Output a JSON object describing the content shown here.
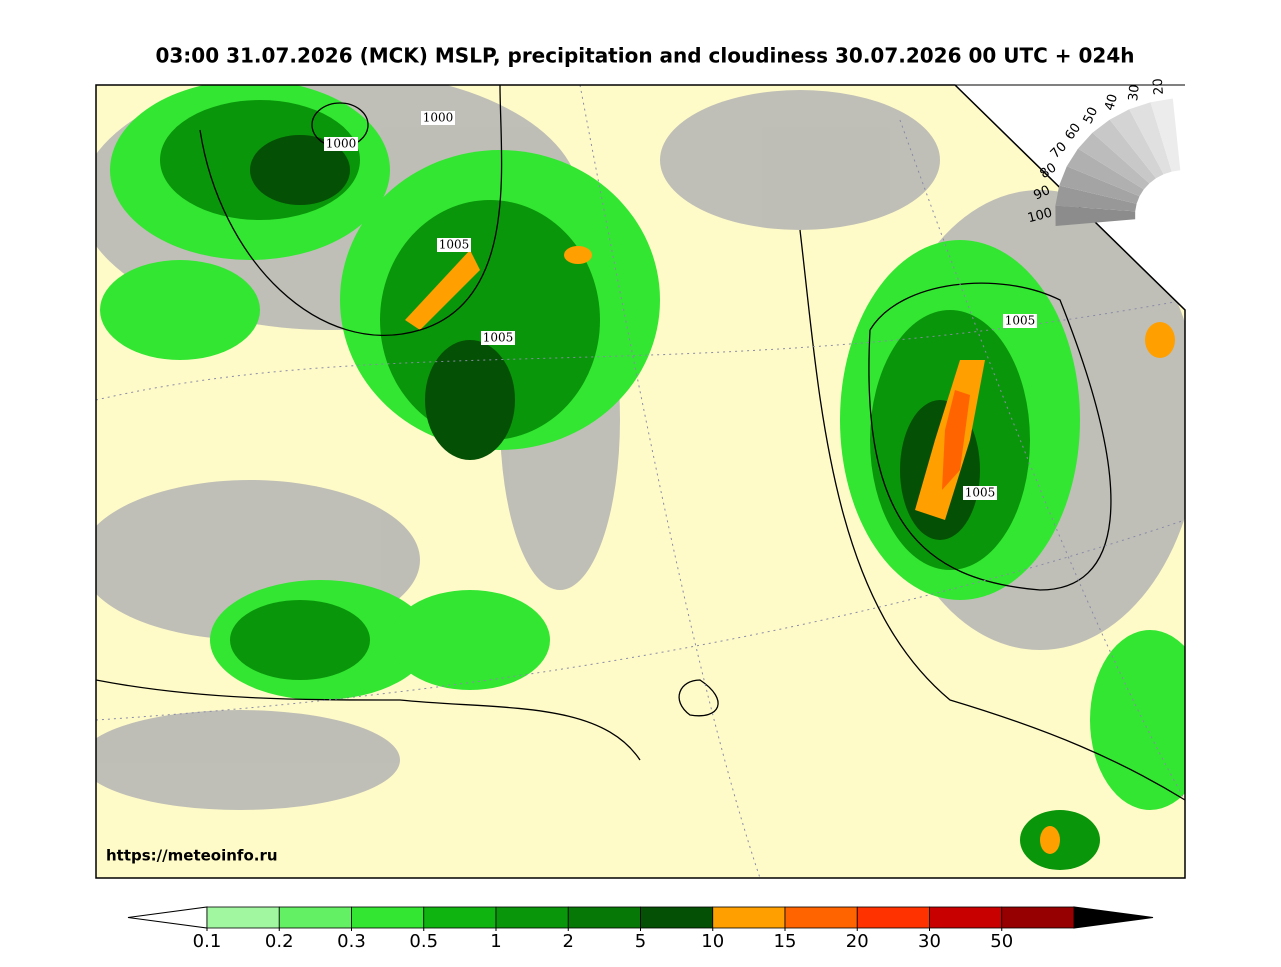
{
  "title": "03:00 31.07.2026 (MCK) MSLP, precipitation and cloudiness 30.07.2026 00 UTC + 024h",
  "watermark": "https://meteoinfo.ru",
  "isobar_labels": [
    1000,
    1000,
    1005,
    1005,
    1005,
    1005
  ],
  "cloudiness_scale": {
    "labels": [
      100,
      90,
      80,
      70,
      60,
      50,
      40,
      30,
      20
    ]
  },
  "colorbar": {
    "ticks": [
      0.1,
      0.2,
      0.3,
      0.5,
      1,
      2,
      5,
      10,
      15,
      20,
      30,
      50
    ],
    "colors": [
      "#a0f7a0",
      "#64f064",
      "#32e632",
      "#10b410",
      "#0a960a",
      "#067806",
      "#045004",
      "#ff9f00",
      "#ff6400",
      "#ff3200",
      "#c80000",
      "#960000"
    ],
    "under_color": "#ffffff",
    "over_color": "#000000"
  }
}
